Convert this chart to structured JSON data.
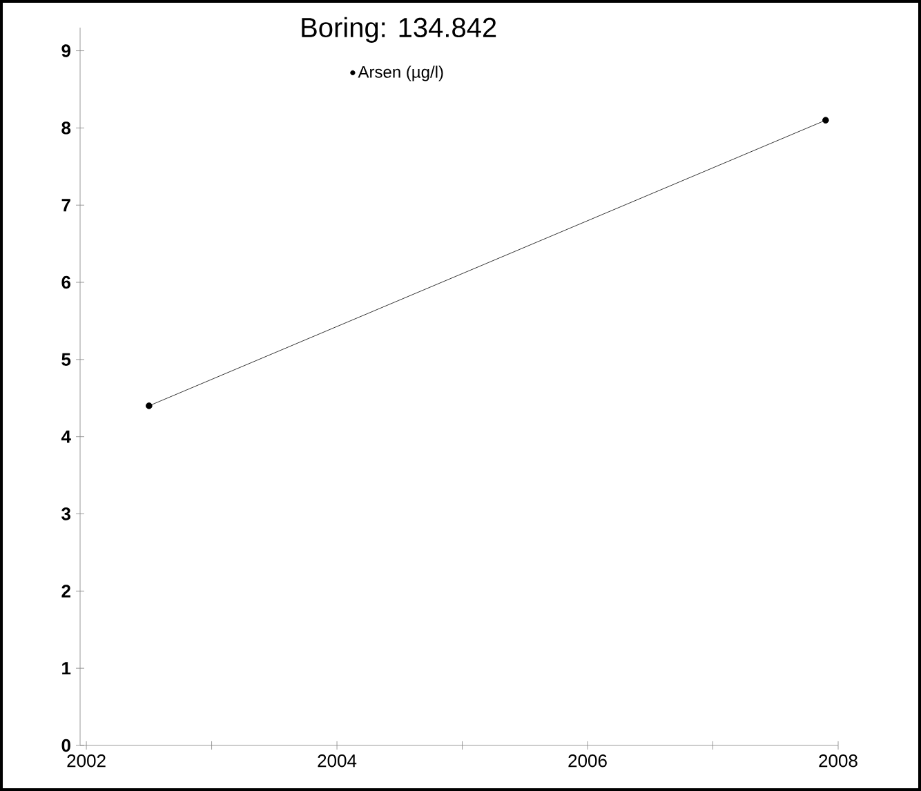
{
  "chart_data": {
    "type": "line",
    "title": "Boring: 134.842",
    "series": [
      {
        "name": "Arsen (µg/l)",
        "color": "#000000",
        "x": [
          2002.5,
          2007.9
        ],
        "values": [
          4.4,
          8.1
        ]
      }
    ],
    "xlim": [
      2001.95,
      2008
    ],
    "ylim": [
      0,
      9.3
    ],
    "xticks": [
      2002,
      {
        "value": 2003,
        "label": null
      },
      2004,
      {
        "value": 2005,
        "label": null
      },
      2006,
      {
        "value": 2007,
        "label": null
      },
      2008
    ],
    "yticks": [
      0,
      1,
      2,
      3,
      4,
      5,
      6,
      7,
      8,
      9
    ],
    "legend": "top",
    "marker": "circle",
    "line_style": "solid",
    "grid": false
  }
}
